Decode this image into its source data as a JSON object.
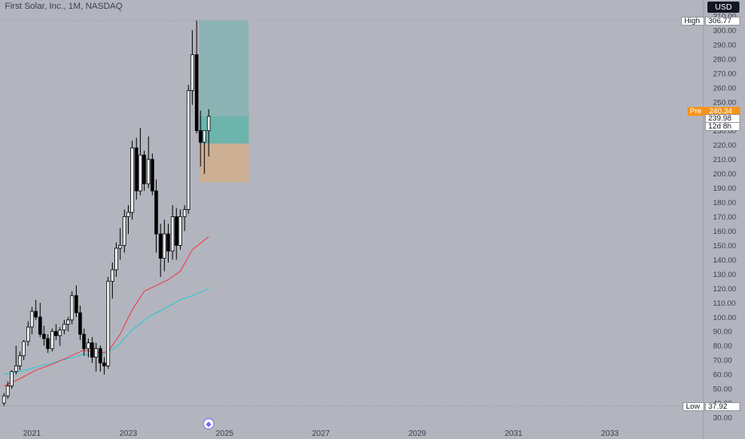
{
  "header": {
    "symbol_title": "First Solar, Inc., 1M, NASDAQ",
    "currency": "USD"
  },
  "price_tags": {
    "high_label": "High",
    "high_value": "306.77",
    "low_label": "Low",
    "low_value": "37.92",
    "pre_label": "Pre",
    "pre_value": "240.34",
    "last_price": "239.98",
    "countdown": "12d 8h"
  },
  "nav_icon": "diamond-arrows-icon",
  "colors": {
    "background": "#b2b5be",
    "candle_up": "#ffffff",
    "candle_down": "#000000",
    "ma_fast": "#f23645",
    "ma_slow": "#26c6da",
    "target_zone": "#5fb3a9",
    "stop_zone": "#d6ad86",
    "accent": "#f7931a"
  },
  "chart_data": {
    "type": "candlestick",
    "title": "First Solar, Inc., 1M, NASDAQ",
    "ylim": [
      30,
      310
    ],
    "y_ticks": [
      30,
      40,
      50,
      60,
      70,
      80,
      90,
      100,
      110,
      120,
      130,
      140,
      150,
      160,
      170,
      180,
      190,
      200,
      210,
      220,
      230,
      240,
      250,
      260,
      270,
      280,
      290,
      300,
      310
    ],
    "y_tick_labels": [
      "30.00",
      "40.00",
      "50.00",
      "60.00",
      "70.00",
      "80.00",
      "90.00",
      "100.00",
      "110.00",
      "120.00",
      "130.00",
      "140.00",
      "150.00",
      "160.00",
      "170.00",
      "180.00",
      "190.00",
      "200.00",
      "210.00",
      "220.00",
      "230.00",
      "240.00",
      "250.00",
      "260.00",
      "270.00",
      "280.00",
      "290.00",
      "300.00",
      "310.00"
    ],
    "x_ticks": [
      "2021",
      "2023",
      "2025",
      "2027",
      "2029",
      "2031",
      "2033"
    ],
    "x_tick_years": [
      2021,
      2023,
      2025,
      2027,
      2029,
      2031,
      2033
    ],
    "x_range_years": [
      2020.4,
      2035.0
    ],
    "high": 306.77,
    "low": 37.92,
    "last": 239.98,
    "candles": [
      {
        "t": 2020.42,
        "o": 40,
        "h": 47,
        "l": 38,
        "c": 45
      },
      {
        "t": 2020.5,
        "o": 45,
        "h": 55,
        "l": 43,
        "c": 52
      },
      {
        "t": 2020.58,
        "o": 52,
        "h": 63,
        "l": 50,
        "c": 62
      },
      {
        "t": 2020.67,
        "o": 62,
        "h": 80,
        "l": 60,
        "c": 66
      },
      {
        "t": 2020.75,
        "o": 66,
        "h": 76,
        "l": 63,
        "c": 73
      },
      {
        "t": 2020.83,
        "o": 73,
        "h": 84,
        "l": 70,
        "c": 83
      },
      {
        "t": 2020.92,
        "o": 83,
        "h": 97,
        "l": 80,
        "c": 93
      },
      {
        "t": 2021.0,
        "o": 93,
        "h": 107,
        "l": 88,
        "c": 104
      },
      {
        "t": 2021.08,
        "o": 104,
        "h": 112,
        "l": 98,
        "c": 100
      },
      {
        "t": 2021.17,
        "o": 100,
        "h": 110,
        "l": 86,
        "c": 88
      },
      {
        "t": 2021.25,
        "o": 88,
        "h": 94,
        "l": 80,
        "c": 85
      },
      {
        "t": 2021.33,
        "o": 85,
        "h": 88,
        "l": 75,
        "c": 78
      },
      {
        "t": 2021.42,
        "o": 78,
        "h": 92,
        "l": 76,
        "c": 90
      },
      {
        "t": 2021.5,
        "o": 90,
        "h": 95,
        "l": 84,
        "c": 87
      },
      {
        "t": 2021.58,
        "o": 87,
        "h": 93,
        "l": 80,
        "c": 91
      },
      {
        "t": 2021.67,
        "o": 91,
        "h": 98,
        "l": 88,
        "c": 95
      },
      {
        "t": 2021.75,
        "o": 95,
        "h": 100,
        "l": 90,
        "c": 98
      },
      {
        "t": 2021.83,
        "o": 98,
        "h": 118,
        "l": 95,
        "c": 115
      },
      {
        "t": 2021.92,
        "o": 115,
        "h": 122,
        "l": 100,
        "c": 103
      },
      {
        "t": 2022.0,
        "o": 103,
        "h": 108,
        "l": 84,
        "c": 88
      },
      {
        "t": 2022.08,
        "o": 88,
        "h": 92,
        "l": 73,
        "c": 78
      },
      {
        "t": 2022.17,
        "o": 78,
        "h": 85,
        "l": 72,
        "c": 82
      },
      {
        "t": 2022.25,
        "o": 82,
        "h": 86,
        "l": 68,
        "c": 72
      },
      {
        "t": 2022.33,
        "o": 72,
        "h": 82,
        "l": 62,
        "c": 78
      },
      {
        "t": 2022.42,
        "o": 78,
        "h": 80,
        "l": 62,
        "c": 68
      },
      {
        "t": 2022.5,
        "o": 68,
        "h": 72,
        "l": 60,
        "c": 66
      },
      {
        "t": 2022.58,
        "o": 66,
        "h": 128,
        "l": 64,
        "c": 125
      },
      {
        "t": 2022.67,
        "o": 125,
        "h": 138,
        "l": 113,
        "c": 133
      },
      {
        "t": 2022.75,
        "o": 133,
        "h": 152,
        "l": 128,
        "c": 148
      },
      {
        "t": 2022.83,
        "o": 148,
        "h": 162,
        "l": 140,
        "c": 150
      },
      {
        "t": 2022.92,
        "o": 150,
        "h": 175,
        "l": 145,
        "c": 170
      },
      {
        "t": 2023.0,
        "o": 170,
        "h": 178,
        "l": 158,
        "c": 173
      },
      {
        "t": 2023.08,
        "o": 173,
        "h": 223,
        "l": 168,
        "c": 218
      },
      {
        "t": 2023.17,
        "o": 218,
        "h": 225,
        "l": 182,
        "c": 188
      },
      {
        "t": 2023.25,
        "o": 188,
        "h": 232,
        "l": 185,
        "c": 213
      },
      {
        "t": 2023.33,
        "o": 213,
        "h": 216,
        "l": 188,
        "c": 193
      },
      {
        "t": 2023.42,
        "o": 193,
        "h": 226,
        "l": 190,
        "c": 210
      },
      {
        "t": 2023.5,
        "o": 210,
        "h": 214,
        "l": 185,
        "c": 188
      },
      {
        "t": 2023.58,
        "o": 188,
        "h": 196,
        "l": 145,
        "c": 158
      },
      {
        "t": 2023.67,
        "o": 158,
        "h": 165,
        "l": 128,
        "c": 141
      },
      {
        "t": 2023.75,
        "o": 141,
        "h": 168,
        "l": 132,
        "c": 158
      },
      {
        "t": 2023.83,
        "o": 158,
        "h": 165,
        "l": 138,
        "c": 146
      },
      {
        "t": 2023.92,
        "o": 146,
        "h": 178,
        "l": 140,
        "c": 170
      },
      {
        "t": 2024.0,
        "o": 170,
        "h": 176,
        "l": 140,
        "c": 150
      },
      {
        "t": 2024.08,
        "o": 150,
        "h": 175,
        "l": 147,
        "c": 170
      },
      {
        "t": 2024.17,
        "o": 170,
        "h": 178,
        "l": 160,
        "c": 175
      },
      {
        "t": 2024.25,
        "o": 175,
        "h": 262,
        "l": 172,
        "c": 258
      },
      {
        "t": 2024.33,
        "o": 258,
        "h": 300,
        "l": 248,
        "c": 283
      },
      {
        "t": 2024.42,
        "o": 283,
        "h": 306.77,
        "l": 228,
        "c": 230
      },
      {
        "t": 2024.5,
        "o": 230,
        "h": 244,
        "l": 205,
        "c": 222
      },
      {
        "t": 2024.58,
        "o": 222,
        "h": 228,
        "l": 200,
        "c": 230
      },
      {
        "t": 2024.67,
        "o": 230,
        "h": 245,
        "l": 212,
        "c": 239.98
      }
    ],
    "ma_fast": [
      [
        2020.42,
        52
      ],
      [
        2020.75,
        57
      ],
      [
        2021.08,
        63
      ],
      [
        2021.42,
        67
      ],
      [
        2021.75,
        72
      ],
      [
        2022.08,
        77
      ],
      [
        2022.42,
        75
      ],
      [
        2022.58,
        76
      ],
      [
        2022.83,
        88
      ],
      [
        2023.08,
        105
      ],
      [
        2023.33,
        118
      ],
      [
        2023.58,
        122
      ],
      [
        2023.83,
        126
      ],
      [
        2024.08,
        132
      ],
      [
        2024.33,
        147
      ],
      [
        2024.67,
        156
      ]
    ],
    "ma_slow": [
      [
        2020.42,
        60
      ],
      [
        2020.75,
        62
      ],
      [
        2021.08,
        65
      ],
      [
        2021.42,
        68
      ],
      [
        2021.75,
        71
      ],
      [
        2022.08,
        74
      ],
      [
        2022.42,
        73
      ],
      [
        2022.75,
        79
      ],
      [
        2023.08,
        91
      ],
      [
        2023.42,
        100
      ],
      [
        2023.75,
        106
      ],
      [
        2024.08,
        112
      ],
      [
        2024.42,
        116
      ],
      [
        2024.67,
        120
      ]
    ],
    "position": {
      "t_start": 2024.42,
      "t_end": 2025.5,
      "entry": 221,
      "target": 306.77,
      "stop": 194,
      "current": 239.98
    }
  }
}
